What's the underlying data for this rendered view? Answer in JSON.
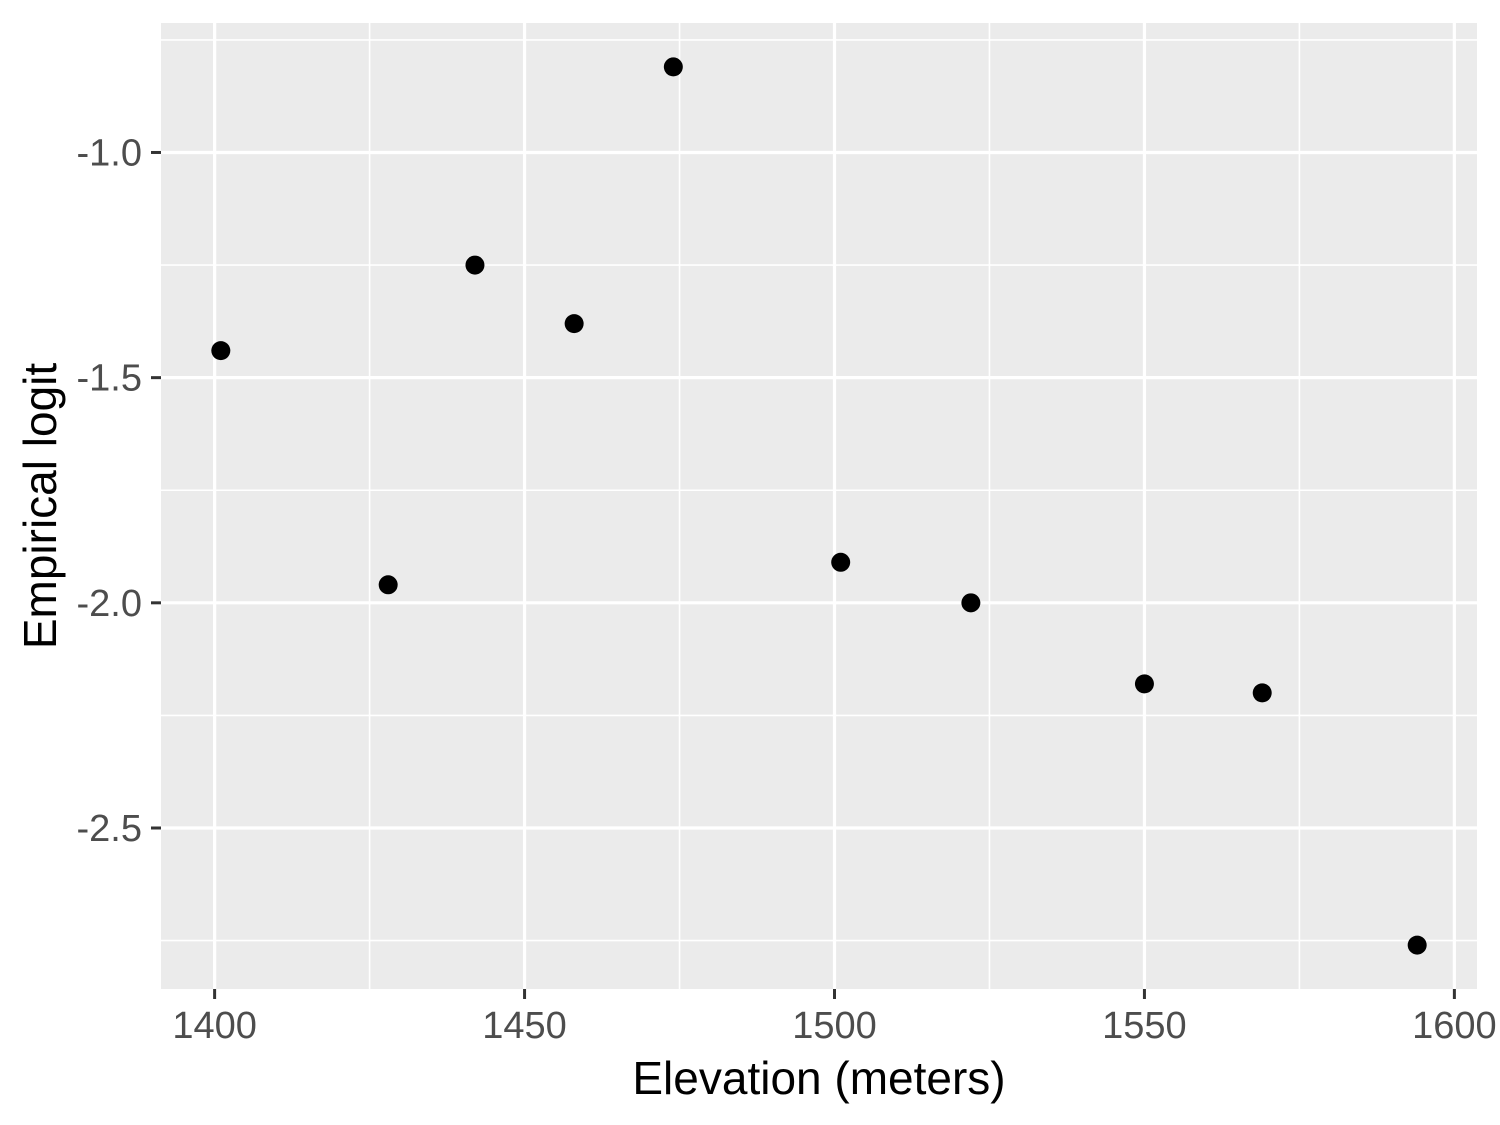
{
  "chart_data": {
    "type": "scatter",
    "title": "",
    "xlabel": "Elevation (meters)",
    "ylabel": "Empirical logit",
    "points": [
      {
        "x": 1401,
        "y": -1.44
      },
      {
        "x": 1428,
        "y": -1.96
      },
      {
        "x": 1442,
        "y": -1.25
      },
      {
        "x": 1458,
        "y": -1.38
      },
      {
        "x": 1474,
        "y": -0.81
      },
      {
        "x": 1501,
        "y": -1.91
      },
      {
        "x": 1522,
        "y": -2.0
      },
      {
        "x": 1550,
        "y": -2.18
      },
      {
        "x": 1569,
        "y": -2.2
      },
      {
        "x": 1594,
        "y": -2.76
      }
    ],
    "x_ticks": {
      "values": [
        1400,
        1450,
        1500,
        1550,
        1600
      ],
      "labels": [
        "1400",
        "1450",
        "1500",
        "1550",
        "1600"
      ]
    },
    "y_ticks": {
      "values": [
        -1.0,
        -1.5,
        -2.0,
        -2.5
      ],
      "labels": [
        "-1.0",
        "-1.5",
        "-2.0",
        "-2.5"
      ]
    },
    "x_minor_gridlines": [
      1425,
      1475,
      1525,
      1575
    ],
    "y_minor_gridlines": [
      -0.75,
      -1.25,
      -1.75,
      -2.25,
      -2.75
    ],
    "xlim": [
      1391.35,
      1603.65
    ],
    "ylim": [
      -2.8575,
      -0.7125
    ],
    "grid": "major-and-minor",
    "legend_position": "none",
    "style": {
      "page_bg": "#FFFFFF",
      "panel_bg": "#EBEBEB",
      "grid_color": "#FFFFFF",
      "point_color": "#000000",
      "tick_mark_color": "#333333",
      "tick_label_color": "#4D4D4D",
      "axis_title_color": "#000000"
    }
  }
}
